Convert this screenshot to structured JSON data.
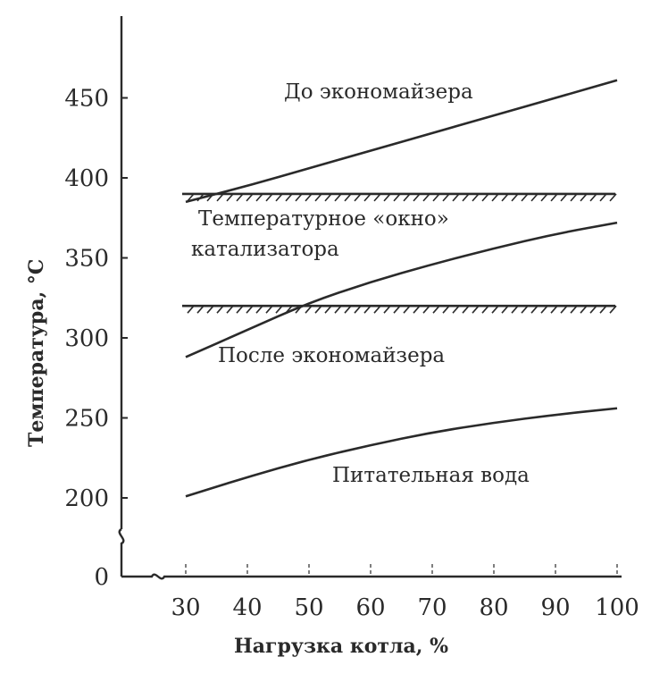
{
  "chart_data": {
    "type": "line",
    "xlabel": "Нагрузка котла, %",
    "ylabel": "Температура, °C",
    "x_ticks": [
      30,
      40,
      50,
      60,
      70,
      80,
      90,
      100
    ],
    "y_ticks": [
      0,
      200,
      250,
      300,
      350,
      400,
      450
    ],
    "xlim": [
      30,
      100
    ],
    "ylim_broken": [
      0,
      200
    ],
    "ylim": [
      200,
      460
    ],
    "series": [
      {
        "name": "До экономайзера",
        "x": [
          30,
          40,
          50,
          60,
          70,
          80,
          90,
          100
        ],
        "y": [
          385,
          395,
          406,
          417,
          428,
          439,
          450,
          461
        ]
      },
      {
        "name": "После экономайзера",
        "x": [
          30,
          40,
          50,
          60,
          70,
          80,
          90,
          100
        ],
        "y": [
          288,
          305,
          322,
          335,
          346,
          356,
          365,
          372
        ]
      },
      {
        "name": "Питательная вода",
        "x": [
          30,
          40,
          50,
          60,
          70,
          80,
          90,
          100
        ],
        "y": [
          201,
          213,
          224,
          233,
          241,
          247,
          252,
          256
        ]
      }
    ],
    "bounds": [
      {
        "name": "upper",
        "y": 390
      },
      {
        "name": "lower",
        "y": 320
      }
    ],
    "annotations": {
      "before": "До экономайзера",
      "window_line1": "Температурное «окно»",
      "window_line2": "катализатора",
      "after": "После экономайзера",
      "feedwater": "Питательная вода"
    }
  }
}
